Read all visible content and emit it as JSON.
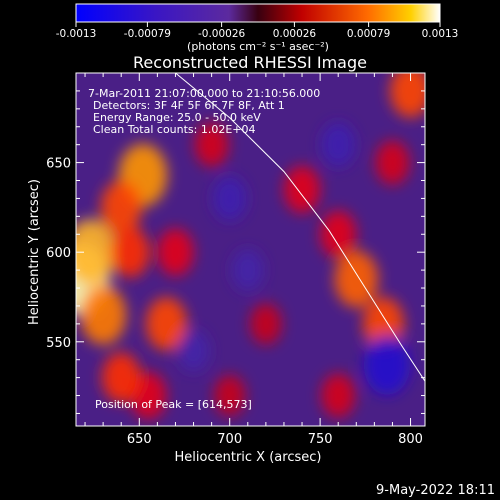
{
  "chart_data": {
    "type": "heatmap",
    "title": "Reconstructed RHESSI Image",
    "xlabel": "Heliocentric X (arcsec)",
    "ylabel": "Heliocentric Y (arcsec)",
    "xlim": [
      615,
      808
    ],
    "ylim": [
      503,
      700
    ],
    "x_ticks": [
      650,
      700,
      750,
      800
    ],
    "y_ticks": [
      550,
      600,
      650
    ],
    "colorbar": {
      "unit_label": "(photons cm⁻² s⁻¹ asec⁻²)",
      "range": [
        -0.0013,
        0.0013
      ],
      "ticks": [
        "-0.0013",
        "-0.00079",
        "-0.00026",
        "0.00026",
        "0.00079",
        "0.0013"
      ]
    },
    "annotations": [
      "7-Mar-2011 21:07:00.000 to 21:10:56.000",
      "Detectors: 3F 4F 5F 6F 7F 8F, Att 1",
      "Energy Range: 25.0 - 50.0 keV",
      "Clean     Total counts: 1.02E+04"
    ],
    "peak_label": "Position of Peak = [614,573]",
    "limb": [
      [
        670,
        700
      ],
      [
        700,
        675
      ],
      [
        730,
        645
      ],
      [
        755,
        612
      ],
      [
        775,
        580
      ],
      [
        795,
        548
      ],
      [
        808,
        528
      ]
    ],
    "sources": [
      {
        "x": 618,
        "y": 585,
        "value": 0.0013
      },
      {
        "x": 623,
        "y": 600,
        "value": 0.0011
      },
      {
        "x": 630,
        "y": 565,
        "value": 0.0009
      },
      {
        "x": 652,
        "y": 643,
        "value": 0.001
      },
      {
        "x": 640,
        "y": 625,
        "value": 0.0007
      },
      {
        "x": 665,
        "y": 560,
        "value": 0.0007
      },
      {
        "x": 670,
        "y": 600,
        "value": 0.0005
      },
      {
        "x": 645,
        "y": 600,
        "value": 0.0006
      },
      {
        "x": 655,
        "y": 520,
        "value": 0.0005
      },
      {
        "x": 640,
        "y": 530,
        "value": 0.0006
      },
      {
        "x": 690,
        "y": 660,
        "value": 0.0004
      },
      {
        "x": 740,
        "y": 635,
        "value": 0.0005
      },
      {
        "x": 760,
        "y": 610,
        "value": 0.0005
      },
      {
        "x": 770,
        "y": 585,
        "value": 0.0008
      },
      {
        "x": 785,
        "y": 560,
        "value": 0.0007
      },
      {
        "x": 800,
        "y": 690,
        "value": 0.0007
      },
      {
        "x": 790,
        "y": 650,
        "value": 0.0004
      },
      {
        "x": 760,
        "y": 520,
        "value": 0.0004
      },
      {
        "x": 700,
        "y": 520,
        "value": 0.0003
      },
      {
        "x": 720,
        "y": 560,
        "value": 0.0003
      },
      {
        "x": 787,
        "y": 537,
        "value": -0.0009
      },
      {
        "x": 700,
        "y": 630,
        "value": -0.0004
      },
      {
        "x": 710,
        "y": 590,
        "value": -0.0003
      },
      {
        "x": 760,
        "y": 660,
        "value": -0.0004
      },
      {
        "x": 680,
        "y": 545,
        "value": -0.0003
      }
    ]
  },
  "footer": {
    "date": "9-May-2022 18:11"
  }
}
